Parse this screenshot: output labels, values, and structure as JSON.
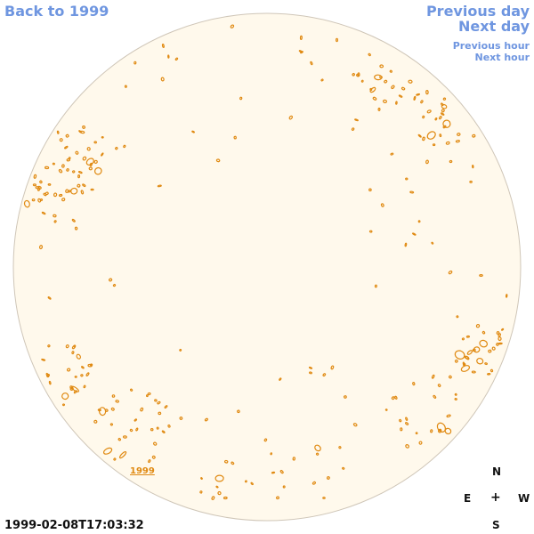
{
  "nav": {
    "back_label": "Back to 1999",
    "previous_day_label": "Previous day",
    "next_day_label": "Next day",
    "previous_hour_label": "Previous hour",
    "next_hour_label": "Next hour"
  },
  "year_link": "1999",
  "compass": {
    "north": "N",
    "east": "E",
    "center": "+",
    "west": "W",
    "south": "S"
  },
  "timestamp": "1999-02-08T17:03:32",
  "colors": {
    "disk_fill": "#fff9ec",
    "disk_border": "#cfc6b8",
    "contour": "#e08a12",
    "link": "#6f96e0"
  }
}
